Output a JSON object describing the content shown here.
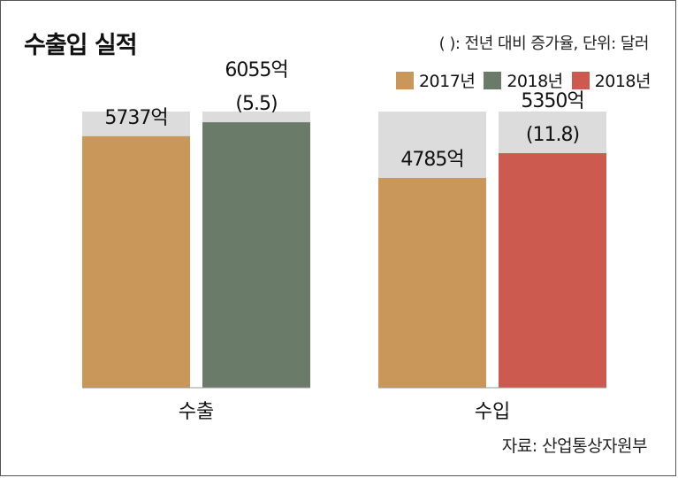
{
  "title": "수출입 실적",
  "note": "( ): 전년 대비 증가율, 단위: 달러",
  "source": "자료: 산업통상자원부",
  "legend": [
    {
      "label": "2017년",
      "color": "#c9975a"
    },
    {
      "label": "2018년",
      "color": "#6b7b69"
    },
    {
      "label": "2018년",
      "color": "#cd5a4e"
    }
  ],
  "chart_data": {
    "type": "bar",
    "categories": [
      "수출",
      "수입"
    ],
    "unit": "억 달러",
    "background_color": "#dcdcdc",
    "bars": [
      {
        "category": "수출",
        "value": 5737,
        "label": "5737억",
        "change": "",
        "color": "#c9975a"
      },
      {
        "category": "수출",
        "value": 6055,
        "label": "6055억",
        "change": "(5.5)",
        "color": "#6b7b69"
      },
      {
        "category": "수입",
        "value": 4785,
        "label": "4785억",
        "change": "",
        "color": "#c9975a"
      },
      {
        "category": "수입",
        "value": 5350,
        "label": "5350억",
        "change": "(11.8)",
        "color": "#cd5a4e"
      }
    ],
    "ylim": [
      0,
      6300
    ]
  }
}
